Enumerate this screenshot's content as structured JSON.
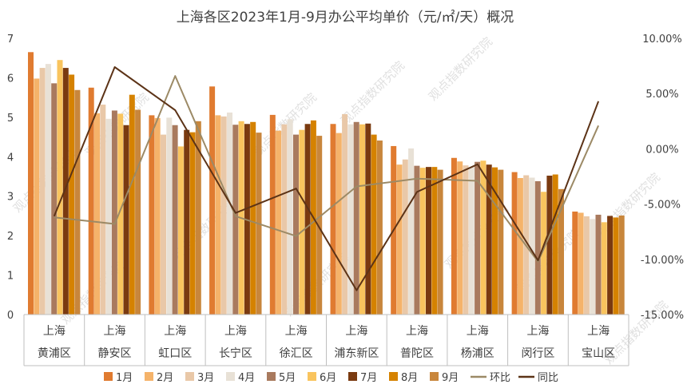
{
  "chart_data": {
    "type": "bar",
    "title": "上海各区2023年1月-9月办公平均单价（元/㎡/天）概况",
    "categories_top": [
      "上海",
      "上海",
      "上海",
      "上海",
      "上海",
      "上海",
      "上海",
      "上海",
      "上海",
      "上海"
    ],
    "categories": [
      "黄浦区",
      "静安区",
      "虹口区",
      "长宁区",
      "徐汇区",
      "浦东新区",
      "普陀区",
      "杨浦区",
      "闵行区",
      "宝山区"
    ],
    "ylim": [
      0,
      7
    ],
    "y_ticks": [
      "0",
      "1",
      "2",
      "3",
      "4",
      "5",
      "6",
      "7"
    ],
    "y2lim": [
      -15,
      10
    ],
    "y2_ticks": [
      "-15.00%",
      "-10.00%",
      "-5.00%",
      "0.00%",
      "5.00%",
      "10.00%"
    ],
    "series": [
      {
        "name": "1月",
        "color": "#E07B30",
        "values": [
          6.65,
          5.75,
          5.05,
          5.78,
          5.06,
          4.83,
          4.27,
          3.97,
          3.61,
          2.61
        ]
      },
      {
        "name": "2月",
        "color": "#F5B36A",
        "values": [
          5.98,
          5.1,
          4.98,
          5.05,
          4.66,
          4.6,
          3.8,
          3.88,
          3.46,
          2.58
        ]
      },
      {
        "name": "3月",
        "color": "#E9C8A8",
        "values": [
          6.25,
          5.32,
          4.56,
          5.02,
          4.82,
          5.08,
          3.93,
          3.78,
          3.53,
          2.49
        ]
      },
      {
        "name": "4月",
        "color": "#E8E1D6",
        "values": [
          6.35,
          4.96,
          4.99,
          5.12,
          4.95,
          4.82,
          4.21,
          3.74,
          3.47,
          2.42
        ]
      },
      {
        "name": "5月",
        "color": "#A97A5E",
        "values": [
          5.86,
          5.17,
          4.8,
          4.81,
          4.56,
          4.88,
          3.77,
          3.87,
          3.38,
          2.53
        ]
      },
      {
        "name": "6月",
        "color": "#F9C45E",
        "values": [
          6.45,
          5.09,
          4.26,
          4.9,
          4.68,
          4.82,
          3.72,
          3.9,
          3.11,
          2.34
        ]
      },
      {
        "name": "7月",
        "color": "#7A3A10",
        "values": [
          6.25,
          4.8,
          4.68,
          4.83,
          4.83,
          4.84,
          3.74,
          3.8,
          3.52,
          2.5
        ]
      },
      {
        "name": "8月",
        "color": "#D58200",
        "values": [
          6.08,
          5.57,
          4.62,
          4.88,
          4.92,
          4.56,
          3.74,
          3.73,
          3.55,
          2.46
        ]
      },
      {
        "name": "9月",
        "color": "#C8863C",
        "values": [
          5.69,
          5.19,
          4.9,
          4.61,
          4.53,
          4.41,
          3.67,
          3.67,
          3.18,
          2.51
        ]
      }
    ],
    "line_series": [
      {
        "name": "环比",
        "color": "#9C8A66",
        "axis": "right",
        "values": [
          -6.2,
          -6.8,
          6.6,
          -6.1,
          -7.9,
          -3.4,
          -2.7,
          -2.9,
          -10.2,
          2.1
        ]
      },
      {
        "name": "同比",
        "color": "#5C3317",
        "axis": "right",
        "values": [
          -6.1,
          7.4,
          3.5,
          -5.8,
          -3.6,
          -12.8,
          -3.9,
          -1.4,
          -10.1,
          4.3
        ]
      }
    ],
    "watermark": "观点指数研究院",
    "legend_position": "bottom",
    "grid": false
  }
}
